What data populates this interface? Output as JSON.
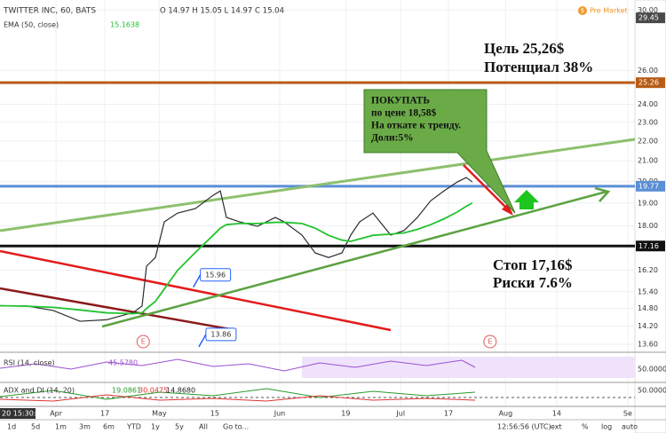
{
  "header": {
    "ohlc": "O 14.97 H 15.05 L 14.97 C 15.04",
    "indicator_value": "15.1638",
    "pre_market": "Pre Market",
    "pre_market_icon": "$"
  },
  "chart_data": {
    "type": "line",
    "log_scale": true,
    "grid": true,
    "x": [
      -10.1,
      -5.3,
      -0.5,
      4.3,
      9.1,
      13.9,
      15.5,
      16.3,
      17.9,
      19.5,
      21.9,
      25.1,
      28.3,
      29.6,
      30.7,
      33.1,
      36.3,
      39.5,
      41.1,
      44.3,
      46.7,
      49.1,
      51.5,
      53.1,
      54.7,
      57.1,
      60.3,
      62.7,
      65.1,
      67.5,
      69.9,
      72.3,
      73.9,
      75.0
    ],
    "series": [
      {
        "name": "TWITTER INC, 60, BATS",
        "color": "#2b2b2b",
        "values": [
          14.89,
          14.89,
          14.73,
          14.36,
          14.41,
          14.66,
          14.89,
          16.36,
          16.7,
          18.17,
          18.55,
          18.75,
          19.35,
          19.55,
          18.36,
          18.17,
          17.98,
          18.36,
          18.17,
          17.61,
          16.88,
          16.7,
          16.88,
          17.61,
          18.17,
          18.55,
          17.61,
          17.8,
          18.36,
          19.1,
          19.55,
          19.97,
          20.18,
          19.97
        ]
      },
      {
        "name": "EMA (50, close)",
        "color": "#22c32e",
        "values": [
          14.9,
          14.88,
          14.84,
          14.75,
          14.65,
          14.62,
          14.65,
          14.8,
          15.05,
          15.5,
          16.2,
          16.9,
          17.6,
          17.9,
          18.05,
          18.1,
          18.1,
          18.15,
          18.15,
          18.1,
          17.9,
          17.6,
          17.4,
          17.35,
          17.45,
          17.6,
          17.65,
          17.7,
          17.85,
          18.05,
          18.3,
          18.6,
          18.85,
          19.0
        ]
      }
    ],
    "xlim": [
      -10.1,
      104.3
    ],
    "xticks": [
      {
        "value": 0,
        "label": "Apr"
      },
      {
        "value": 8.8,
        "label": "17"
      },
      {
        "value": 18.6,
        "label": "May"
      },
      {
        "value": 28.6,
        "label": "15"
      },
      {
        "value": 40.3,
        "label": "Jun"
      },
      {
        "value": 52.2,
        "label": "19"
      },
      {
        "value": 62.1,
        "label": "Jul"
      },
      {
        "value": 70.7,
        "label": "17"
      },
      {
        "value": 81,
        "label": "Aug"
      },
      {
        "value": 90.2,
        "label": "14"
      },
      {
        "value": 103,
        "label": "Se"
      }
    ],
    "ylim": [
      13.4,
      30.4
    ],
    "yticks": [
      {
        "value": 30,
        "label": "30.00"
      },
      {
        "value": 26,
        "label": "26.00"
      },
      {
        "value": 24,
        "label": "24.00"
      },
      {
        "value": 23,
        "label": "23.00"
      },
      {
        "value": 22,
        "label": "22.00"
      },
      {
        "value": 21,
        "label": "21.00"
      },
      {
        "value": 20,
        "label": "20.00"
      },
      {
        "value": 19,
        "label": "19.00"
      },
      {
        "value": 18,
        "label": "18.00"
      },
      {
        "value": 16.2,
        "label": "16.20"
      },
      {
        "value": 15.4,
        "label": "15.40"
      },
      {
        "value": 14.8,
        "label": "14.80"
      },
      {
        "value": 14.2,
        "label": "14.20"
      },
      {
        "value": 13.6,
        "label": "13.60"
      }
    ],
    "price_levels": [
      {
        "value": 29.45,
        "label": "29.45",
        "color": "#4a4a4a",
        "line": false
      },
      {
        "value": 25.26,
        "label": "25.26",
        "color": "#b85c16",
        "line": true
      },
      {
        "value": 19.77,
        "label": "19.77",
        "color": "#5b8fd6",
        "line": true
      },
      {
        "value": 17.16,
        "label": "17.16",
        "color": "#111111",
        "line": true
      }
    ],
    "callouts": [
      {
        "value": 15.96,
        "x": 26
      },
      {
        "value": 13.86,
        "x": 27
      }
    ],
    "events": [
      {
        "label": "E",
        "x": 15.7
      },
      {
        "label": "E",
        "x": 78.2
      }
    ],
    "annotations": {
      "target": [
        "Цель 25,26$",
        "Потенциал 38%"
      ],
      "buy": [
        "ПОКУПАТЬ",
        "по цене 18,58$",
        "На откате к тренду.",
        "Доли:5%"
      ],
      "stop": [
        "Стоп 17,16$",
        "Риски 7.6%"
      ]
    }
  },
  "rsi": {
    "title": "RSI (14, close)",
    "value": "45.5780",
    "level": "50.0000"
  },
  "adx": {
    "title": "ADX and DI (14, 20)",
    "values": [
      "19.0861",
      "30.0475",
      "14.8680"
    ],
    "level": "50.0000"
  },
  "time_corner": "20 15:30:00",
  "toolbar": {
    "ranges": [
      "1d",
      "5d",
      "1m",
      "3m",
      "6m",
      "YTD",
      "1y",
      "5y",
      "All"
    ],
    "goto": "Go to...",
    "clock": "12:56:56 (UTC)",
    "options": [
      "ext",
      "%",
      "log",
      "auto"
    ]
  }
}
